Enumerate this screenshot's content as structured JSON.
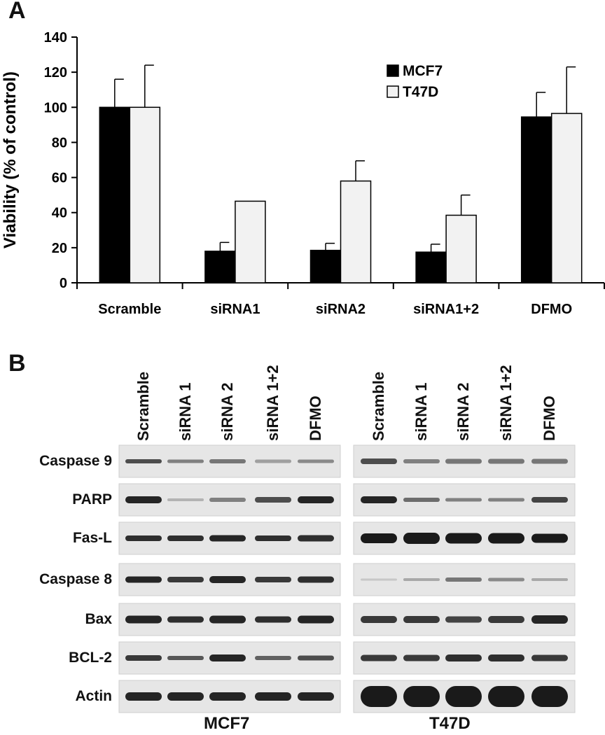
{
  "panel_a": {
    "letter": "A"
  },
  "panel_b": {
    "letter": "B"
  },
  "chart_data": {
    "type": "bar",
    "title": "",
    "xlabel": "",
    "ylabel": "Viability (% of control)",
    "ylim": [
      0,
      140
    ],
    "yticks": [
      0,
      20,
      40,
      60,
      80,
      100,
      120,
      140
    ],
    "categories": [
      "Scramble",
      "siRNA1",
      "siRNA2",
      "siRNA1+2",
      "DFMO"
    ],
    "series": [
      {
        "name": "MCF7",
        "color": "#000000",
        "values": [
          100,
          18,
          18.5,
          17.5,
          94.5
        ],
        "errors": [
          16,
          5,
          4,
          4.5,
          14
        ]
      },
      {
        "name": "T47D",
        "color": "#f2f2f2",
        "values": [
          100,
          46.5,
          58,
          38.5,
          96.5
        ],
        "errors": [
          24,
          0,
          11.5,
          11.5,
          26.5
        ]
      }
    ],
    "legend_position": "top-right",
    "grid": false
  },
  "blots": {
    "cell_lines": [
      "MCF7",
      "T47D"
    ],
    "lanes": [
      [
        "Scramble",
        "siRNA 1",
        "siRNA 2",
        "siRNA 1+2",
        "DFMO"
      ],
      [
        "Scramble",
        "siRNA 1",
        "siRNA 2",
        "siRNA 1+2",
        "DFMO"
      ]
    ],
    "proteins": [
      "Caspase 9",
      "PARP",
      "Fas-L",
      "Caspase 8",
      "Bax",
      "BCL-2",
      "Actin"
    ]
  }
}
